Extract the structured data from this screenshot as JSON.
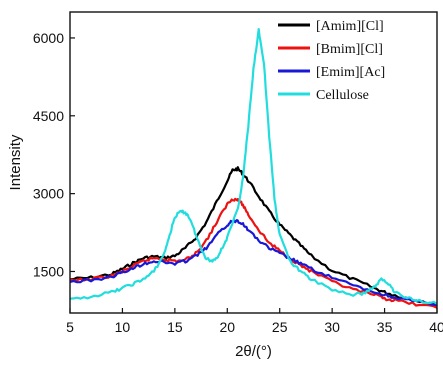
{
  "chart_data": {
    "type": "line",
    "xlabel": "2θ/(°)",
    "ylabel": "Intensity",
    "xlim": [
      5,
      40
    ],
    "ylim": [
      700,
      6500
    ],
    "x_ticks": [
      5,
      10,
      15,
      20,
      25,
      30,
      35,
      40
    ],
    "y_ticks": [
      1500,
      3000,
      4500,
      6000
    ],
    "grid": false,
    "legend_position": "top-right",
    "series": [
      {
        "name": "[Amim][Cl]",
        "color": "#000000",
        "x": [
          5,
          7,
          9,
          10,
          11,
          12,
          13,
          14,
          15,
          16,
          17,
          18,
          19,
          20,
          20.5,
          21,
          21.5,
          22,
          23,
          24,
          25,
          26,
          27,
          28,
          30,
          32,
          34,
          35,
          36,
          38,
          40
        ],
        "y": [
          1350,
          1380,
          1450,
          1550,
          1660,
          1760,
          1790,
          1760,
          1800,
          1950,
          2150,
          2450,
          2850,
          3250,
          3450,
          3480,
          3380,
          3250,
          2950,
          2650,
          2400,
          2200,
          2000,
          1800,
          1520,
          1350,
          1180,
          1100,
          1040,
          950,
          880
        ]
      },
      {
        "name": "[Bmim][Cl]",
        "color": "#ee1111",
        "x": [
          5,
          7,
          9,
          10,
          11,
          12,
          13,
          14,
          15,
          16,
          17,
          18,
          19,
          20,
          20.5,
          21,
          21.5,
          22,
          23,
          24,
          25,
          26,
          27,
          28,
          30,
          32,
          34,
          35,
          36,
          38,
          40
        ],
        "y": [
          1320,
          1350,
          1420,
          1500,
          1600,
          1700,
          1760,
          1740,
          1700,
          1720,
          1850,
          2100,
          2450,
          2800,
          2900,
          2880,
          2780,
          2600,
          2300,
          2050,
          1900,
          1750,
          1620,
          1500,
          1300,
          1150,
          1050,
          980,
          940,
          870,
          800
        ]
      },
      {
        "name": "[Emim][Ac]",
        "color": "#1818d6",
        "x": [
          5,
          7,
          9,
          10,
          11,
          12,
          13,
          14,
          15,
          16,
          17,
          18,
          19,
          20,
          20.5,
          21,
          21.5,
          22,
          23,
          24,
          25,
          26,
          27,
          28,
          30,
          32,
          34,
          35,
          36,
          38,
          40
        ],
        "y": [
          1300,
          1330,
          1400,
          1480,
          1560,
          1650,
          1700,
          1680,
          1650,
          1700,
          1800,
          1950,
          2200,
          2400,
          2470,
          2480,
          2420,
          2300,
          2100,
          1950,
          1850,
          1750,
          1650,
          1550,
          1380,
          1230,
          1100,
          1050,
          1000,
          920,
          850
        ]
      },
      {
        "name": "Cellulose",
        "color": "#22dddd",
        "x": [
          5,
          7,
          9,
          10,
          11,
          12,
          13,
          14,
          14.5,
          15,
          15.5,
          16,
          16.5,
          17,
          17.5,
          18,
          18.5,
          19,
          19.5,
          20,
          21,
          21.5,
          22,
          22.5,
          23,
          23.5,
          24,
          24.5,
          25,
          26,
          27,
          28,
          30,
          32,
          33,
          34,
          34.7,
          35.5,
          36,
          37,
          38,
          40
        ],
        "y": [
          950,
          1020,
          1100,
          1180,
          1260,
          1350,
          1500,
          1850,
          2200,
          2550,
          2650,
          2640,
          2500,
          2200,
          1950,
          1750,
          1700,
          1760,
          1950,
          2150,
          2700,
          3300,
          4300,
          5400,
          6150,
          5500,
          4100,
          2900,
          2200,
          1700,
          1500,
          1350,
          1150,
          1050,
          1080,
          1200,
          1350,
          1250,
          1100,
          1000,
          950,
          880
        ]
      }
    ]
  }
}
